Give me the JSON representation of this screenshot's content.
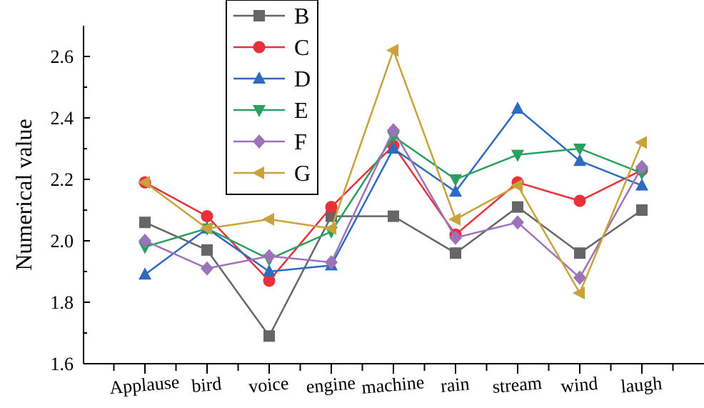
{
  "chart_data": {
    "type": "line",
    "title": "",
    "xlabel": "",
    "ylabel": "Numerical value",
    "categories": [
      "Applause",
      "bird",
      "voice",
      "engine",
      "machine",
      "rain",
      "stream",
      "wind",
      "laugh"
    ],
    "ylim": [
      1.6,
      2.7
    ],
    "yticks": [
      "1.6",
      "1.8",
      "2.0",
      "2.2",
      "2.4",
      "2.6"
    ],
    "legend_position": "top-left",
    "series": [
      {
        "name": "B",
        "color": "#666666",
        "marker": "square",
        "values": [
          2.06,
          1.97,
          1.69,
          2.08,
          2.08,
          1.96,
          2.11,
          1.96,
          2.1
        ]
      },
      {
        "name": "C",
        "color": "#e8313a",
        "marker": "circle",
        "values": [
          2.19,
          2.08,
          1.87,
          2.11,
          2.31,
          2.02,
          2.19,
          2.13,
          2.23
        ]
      },
      {
        "name": "D",
        "color": "#2e6bbf",
        "marker": "triangle-up",
        "values": [
          1.89,
          2.04,
          1.9,
          1.92,
          2.3,
          2.16,
          2.43,
          2.26,
          2.18
        ]
      },
      {
        "name": "E",
        "color": "#2aa060",
        "marker": "triangle-down",
        "values": [
          1.98,
          2.04,
          1.94,
          2.03,
          2.34,
          2.2,
          2.28,
          2.3,
          2.22
        ]
      },
      {
        "name": "F",
        "color": "#9c72b8",
        "marker": "diamond",
        "values": [
          2.0,
          1.91,
          1.95,
          1.93,
          2.36,
          2.01,
          2.06,
          1.88,
          2.24
        ]
      },
      {
        "name": "G",
        "color": "#c9a23a",
        "marker": "triangle-left",
        "values": [
          2.19,
          2.04,
          2.07,
          2.04,
          2.62,
          2.07,
          2.18,
          1.83,
          2.32
        ]
      }
    ]
  }
}
